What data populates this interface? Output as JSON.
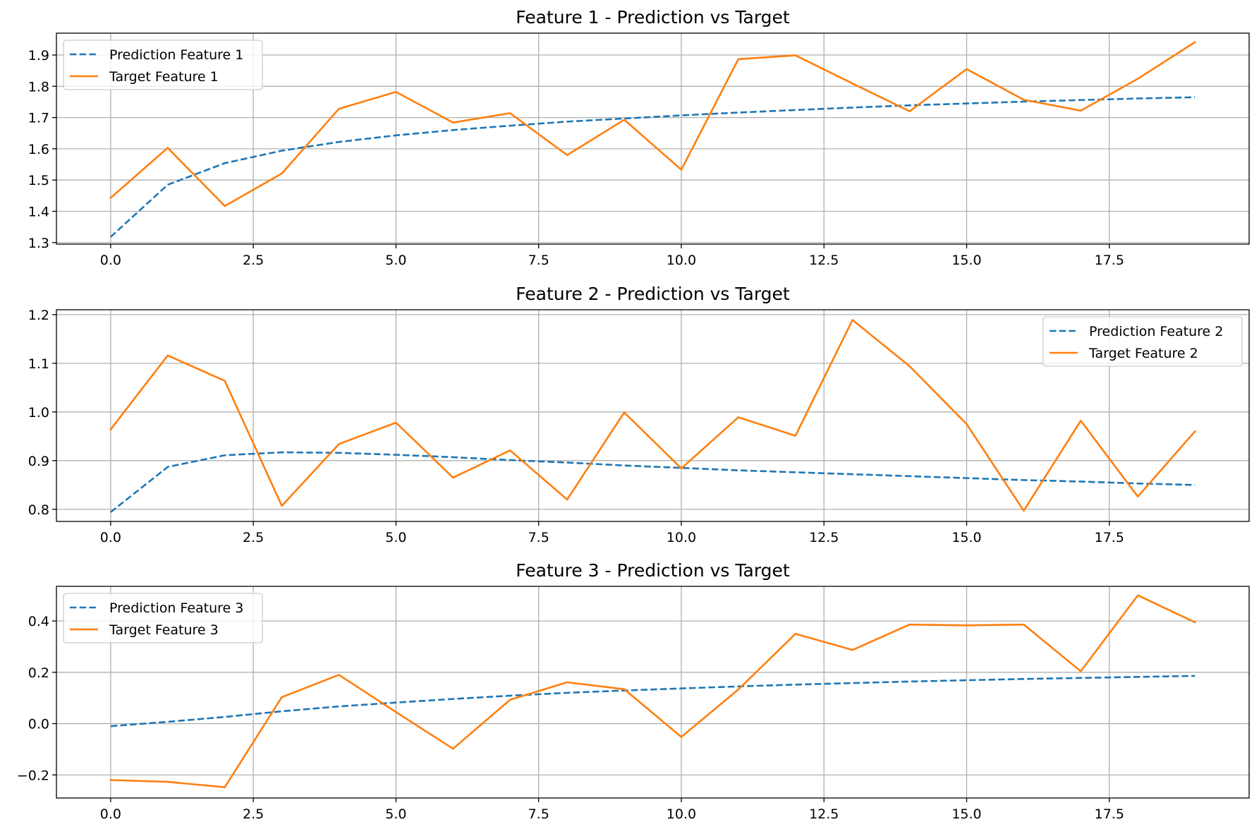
{
  "colors": {
    "prediction": "#1f77b4",
    "target": "#ff7f0e",
    "grid": "#b0b0b0"
  },
  "chart_data": [
    {
      "type": "line",
      "title": "Feature 1 - Prediction vs Target",
      "xlabel": "",
      "ylabel": "",
      "xlim": [
        -0.95,
        19.95
      ],
      "ylim": [
        1.295,
        1.97
      ],
      "xticks": [
        0,
        2.5,
        5,
        7.5,
        10,
        12.5,
        15,
        17.5
      ],
      "xtick_labels": [
        "0.0",
        "2.5",
        "5.0",
        "7.5",
        "10.0",
        "12.5",
        "15.0",
        "17.5"
      ],
      "yticks": [
        1.3,
        1.4,
        1.5,
        1.6,
        1.7,
        1.8,
        1.9
      ],
      "ytick_labels": [
        "1.3",
        "1.4",
        "1.5",
        "1.6",
        "1.7",
        "1.8",
        "1.9"
      ],
      "grid": true,
      "legend_position": "upper-left",
      "x": [
        0,
        1,
        2,
        3,
        4,
        5,
        6,
        7,
        8,
        9,
        10,
        11,
        12,
        13,
        14,
        15,
        16,
        17,
        18,
        19
      ],
      "series": [
        {
          "name": "Prediction Feature 1",
          "style": "dashed",
          "color": "#1f77b4",
          "values": [
            1.318,
            1.485,
            1.554,
            1.594,
            1.622,
            1.643,
            1.66,
            1.674,
            1.687,
            1.697,
            1.707,
            1.716,
            1.724,
            1.732,
            1.739,
            1.745,
            1.751,
            1.756,
            1.761,
            1.765
          ]
        },
        {
          "name": "Target Feature 1",
          "style": "solid",
          "color": "#ff7f0e",
          "values": [
            1.443,
            1.603,
            1.417,
            1.521,
            1.728,
            1.782,
            1.684,
            1.714,
            1.58,
            1.693,
            1.533,
            1.887,
            1.899,
            1.809,
            1.72,
            1.855,
            1.757,
            1.722,
            1.824,
            1.941
          ]
        }
      ]
    },
    {
      "type": "line",
      "title": "Feature 2 - Prediction vs Target",
      "xlabel": "",
      "ylabel": "",
      "xlim": [
        -0.95,
        19.95
      ],
      "ylim": [
        0.775,
        1.21
      ],
      "xticks": [
        0,
        2.5,
        5,
        7.5,
        10,
        12.5,
        15,
        17.5
      ],
      "xtick_labels": [
        "0.0",
        "2.5",
        "5.0",
        "7.5",
        "10.0",
        "12.5",
        "15.0",
        "17.5"
      ],
      "yticks": [
        0.8,
        0.9,
        1.0,
        1.1,
        1.2
      ],
      "ytick_labels": [
        "0.8",
        "0.9",
        "1.0",
        "1.1",
        "1.2"
      ],
      "grid": true,
      "legend_position": "upper-right",
      "x": [
        0,
        1,
        2,
        3,
        4,
        5,
        6,
        7,
        8,
        9,
        10,
        11,
        12,
        13,
        14,
        15,
        16,
        17,
        18,
        19
      ],
      "series": [
        {
          "name": "Prediction Feature 2",
          "style": "dashed",
          "color": "#1f77b4",
          "values": [
            0.794,
            0.887,
            0.911,
            0.917,
            0.916,
            0.912,
            0.907,
            0.901,
            0.896,
            0.89,
            0.885,
            0.88,
            0.876,
            0.872,
            0.868,
            0.864,
            0.86,
            0.857,
            0.853,
            0.85
          ]
        },
        {
          "name": "Target Feature 2",
          "style": "solid",
          "color": "#ff7f0e",
          "values": [
            0.964,
            1.116,
            1.064,
            0.807,
            0.934,
            0.978,
            0.865,
            0.921,
            0.82,
            0.999,
            0.884,
            0.989,
            0.951,
            1.189,
            1.094,
            0.975,
            0.797,
            0.982,
            0.826,
            0.96
          ]
        }
      ]
    },
    {
      "type": "line",
      "title": "Feature 3 - Prediction vs Target",
      "xlabel": "",
      "ylabel": "",
      "xlim": [
        -0.95,
        19.95
      ],
      "ylim": [
        -0.29,
        0.535
      ],
      "xticks": [
        0,
        2.5,
        5,
        7.5,
        10,
        12.5,
        15,
        17.5
      ],
      "xtick_labels": [
        "0.0",
        "2.5",
        "5.0",
        "7.5",
        "10.0",
        "12.5",
        "15.0",
        "17.5"
      ],
      "yticks": [
        -0.2,
        0.0,
        0.2,
        0.4
      ],
      "ytick_labels": [
        "−0.2",
        "0.0",
        "0.2",
        "0.4"
      ],
      "grid": true,
      "legend_position": "upper-left",
      "x": [
        0,
        1,
        2,
        3,
        4,
        5,
        6,
        7,
        8,
        9,
        10,
        11,
        12,
        13,
        14,
        15,
        16,
        17,
        18,
        19
      ],
      "series": [
        {
          "name": "Prediction Feature 3",
          "style": "dashed",
          "color": "#1f77b4",
          "values": [
            -0.01,
            0.007,
            0.026,
            0.048,
            0.067,
            0.082,
            0.096,
            0.109,
            0.12,
            0.129,
            0.137,
            0.145,
            0.152,
            0.158,
            0.164,
            0.169,
            0.174,
            0.178,
            0.182,
            0.186
          ]
        },
        {
          "name": "Target Feature 3",
          "style": "solid",
          "color": "#ff7f0e",
          "values": [
            -0.22,
            -0.227,
            -0.248,
            0.103,
            0.19,
            0.045,
            -0.098,
            0.093,
            0.161,
            0.134,
            -0.052,
            0.133,
            0.35,
            0.287,
            0.386,
            0.383,
            0.386,
            0.204,
            0.5,
            0.395
          ]
        }
      ]
    }
  ]
}
